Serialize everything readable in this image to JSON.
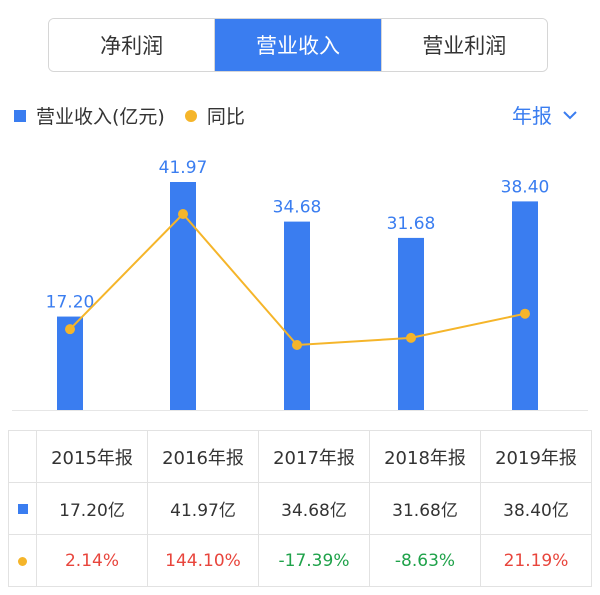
{
  "tabs": [
    {
      "label": "净利润",
      "active": false
    },
    {
      "label": "营业收入",
      "active": true
    },
    {
      "label": "营业利润",
      "active": false
    }
  ],
  "legend": {
    "bar_label": "营业收入(亿元)",
    "line_label": "同比"
  },
  "period_selector": {
    "label": "年报",
    "icon": "chevron-down-icon"
  },
  "colors": {
    "bar": "#3a7df0",
    "line": "#f5b52a",
    "positive": "#e8453c",
    "negative": "#1fa24a"
  },
  "chart_data": {
    "type": "bar",
    "categories": [
      "2015年报",
      "2016年报",
      "2017年报",
      "2018年报",
      "2019年报"
    ],
    "series": [
      {
        "name": "营业收入(亿元)",
        "type": "bar",
        "values": [
          17.2,
          41.97,
          34.68,
          31.68,
          38.4
        ],
        "labels": [
          "17.20",
          "41.97",
          "34.68",
          "31.68",
          "38.40"
        ]
      },
      {
        "name": "同比",
        "type": "line",
        "values": [
          2.14,
          144.1,
          -17.39,
          -8.63,
          21.19
        ]
      }
    ],
    "xlabel": "",
    "ylabel": ""
  },
  "table": {
    "headers": [
      "2015年报",
      "2016年报",
      "2017年报",
      "2018年报",
      "2019年报"
    ],
    "revenue": [
      "17.20亿",
      "41.97亿",
      "34.68亿",
      "31.68亿",
      "38.40亿"
    ],
    "yoy": [
      "2.14%",
      "144.10%",
      "-17.39%",
      "-8.63%",
      "21.19%"
    ]
  }
}
